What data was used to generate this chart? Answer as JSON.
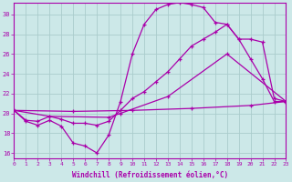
{
  "xlabel": "Windchill (Refroidissement éolien,°C)",
  "background_color": "#cce8e8",
  "grid_color": "#aacccc",
  "line_color": "#aa00aa",
  "xlim": [
    0,
    23
  ],
  "ylim": [
    15.5,
    31.2
  ],
  "xticks": [
    0,
    1,
    2,
    3,
    4,
    5,
    6,
    7,
    8,
    9,
    10,
    11,
    12,
    13,
    14,
    15,
    16,
    17,
    18,
    19,
    20,
    21,
    22,
    23
  ],
  "yticks": [
    16,
    18,
    20,
    22,
    24,
    26,
    28,
    30
  ],
  "line1_x": [
    0,
    1,
    2,
    3,
    4,
    5,
    6,
    7,
    8,
    9,
    10,
    11,
    12,
    13,
    14,
    15,
    16,
    17,
    18,
    19,
    20,
    21,
    22,
    23
  ],
  "line1_y": [
    20.3,
    19.2,
    18.8,
    19.3,
    18.7,
    17.0,
    16.7,
    16.0,
    17.8,
    21.2,
    26.0,
    29.0,
    30.5,
    31.0,
    31.2,
    31.0,
    30.7,
    29.2,
    29.0,
    27.5,
    25.5,
    23.5,
    21.2,
    21.2
  ],
  "line2_x": [
    0,
    1,
    2,
    3,
    4,
    5,
    6,
    7,
    8,
    9,
    10,
    11,
    12,
    13,
    14,
    15,
    16,
    17,
    18,
    19,
    20,
    21,
    22,
    23
  ],
  "line2_y": [
    20.3,
    19.3,
    19.2,
    19.7,
    19.4,
    19.0,
    19.0,
    18.8,
    19.2,
    20.3,
    21.5,
    22.2,
    23.2,
    24.2,
    25.5,
    26.8,
    27.5,
    28.2,
    29.0,
    27.5,
    27.5,
    27.2,
    21.5,
    21.2
  ],
  "line3_x": [
    0,
    3,
    8,
    9,
    13,
    18,
    23
  ],
  "line3_y": [
    20.3,
    19.7,
    19.6,
    20.0,
    21.7,
    26.0,
    21.2
  ],
  "line4_x": [
    0,
    5,
    10,
    15,
    20,
    23
  ],
  "line4_y": [
    20.3,
    20.2,
    20.3,
    20.5,
    20.8,
    21.2
  ]
}
